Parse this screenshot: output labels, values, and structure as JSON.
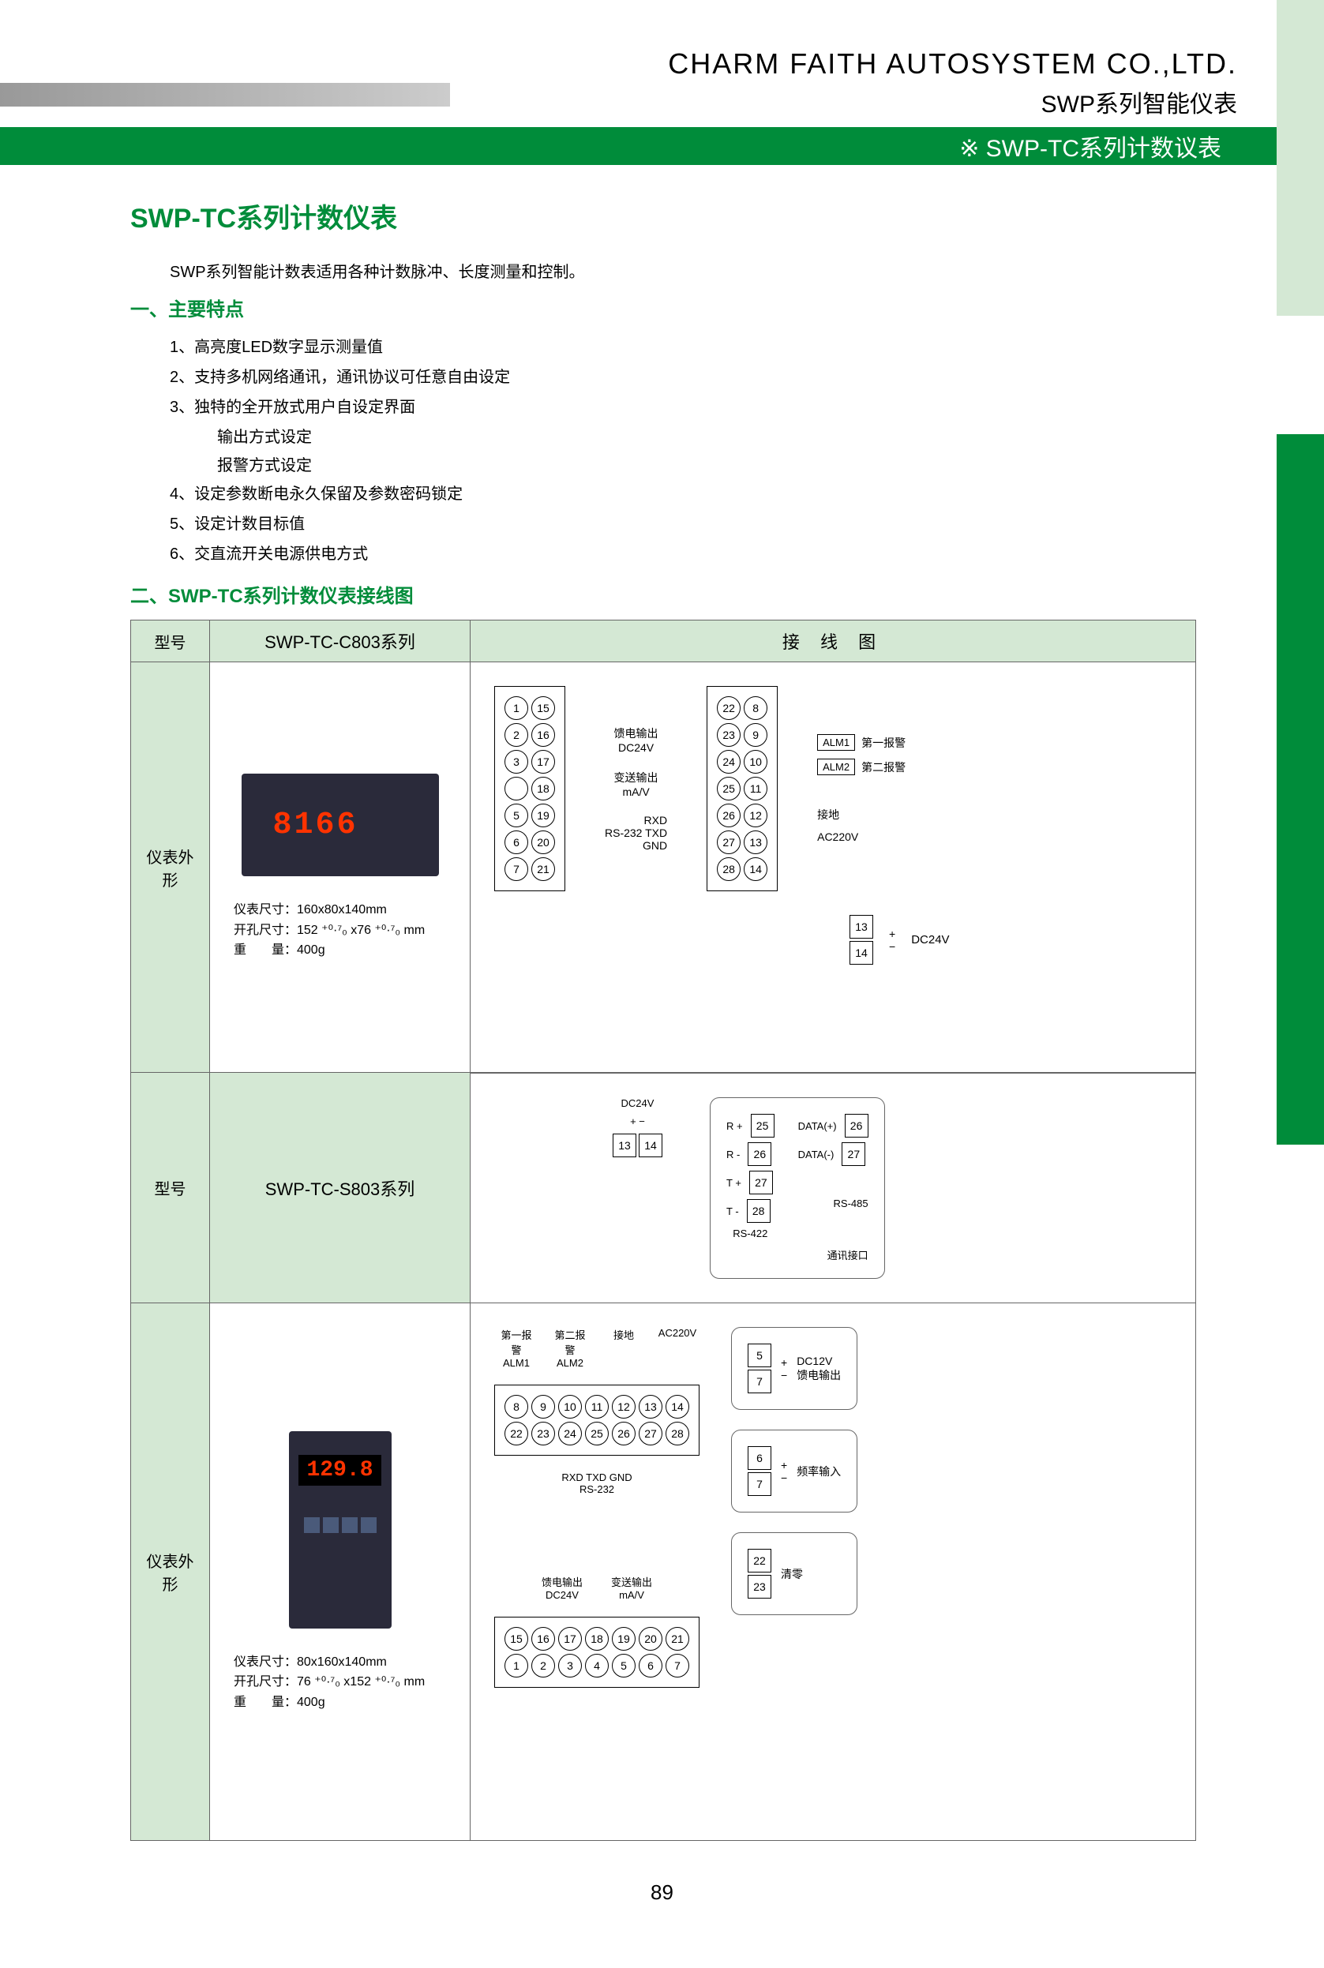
{
  "header": {
    "company": "CHARM FAITH AUTOSYSTEM CO.,LTD.",
    "subtitle": "SWP系列智能仪表",
    "banner": "※ SWP-TC系列计数议表"
  },
  "title": "SWP-TC系列计数仪表",
  "intro": "SWP系列智能计数表适用各种计数脉冲、长度测量和控制。",
  "section1": {
    "heading": "一、主要特点",
    "items": [
      "1、高亮度LED数字显示测量值",
      "2、支持多机网络通讯，通讯协议可任意自由设定",
      "3、独特的全开放式用户自设定界面",
      "4、设定参数断电永久保留及参数密码锁定",
      "5、设定计数目标值",
      "6、交直流开关电源供电方式"
    ],
    "sub3": [
      "输出方式设定",
      "报警方式设定"
    ]
  },
  "section2": {
    "heading": "二、SWP-TC系列计数仪表接线图"
  },
  "table": {
    "header": {
      "col1": "型号",
      "col3": "接 线 图"
    },
    "row1": {
      "model": "SWP-TC-C803系列",
      "label": "仪表外形",
      "display": "8166",
      "spec1": "仪表尺寸：160x80x140mm",
      "spec2": "开孔尺寸：152 ⁺⁰·⁷₀ x76 ⁺⁰·⁷₀ mm",
      "spec3": "重　　量：400g"
    },
    "row2": {
      "model": "SWP-TC-S803系列",
      "label": "仪表外形",
      "display": "129.8",
      "spec1": "仪表尺寸：80x160x140mm",
      "spec2": "开孔尺寸：76 ⁺⁰·⁷₀ x152 ⁺⁰·⁷₀ mm",
      "spec3": "重　　量：400g"
    }
  },
  "diagram_c803": {
    "left_pins_col1": [
      "1",
      "2",
      "3",
      "",
      "5",
      "6",
      "7"
    ],
    "left_pins_col2": [
      "15",
      "16",
      "17",
      "18",
      "19",
      "20",
      "21"
    ],
    "right_pins_col1": [
      "22",
      "23",
      "24",
      "25",
      "26",
      "27",
      "28"
    ],
    "right_pins_col2": [
      "8",
      "9",
      "10",
      "11",
      "12",
      "13",
      "14"
    ],
    "mid_labels": [
      {
        "t1": "馈电输出",
        "t2": "DC24V"
      },
      {
        "t1": "变送输出",
        "t2": "mA/V"
      },
      {
        "t1": "RXD",
        "t2": ""
      },
      {
        "t1": "RS-232  TXD",
        "t2": ""
      },
      {
        "t1": "GND",
        "t2": ""
      }
    ],
    "right_labels": [
      {
        "box": "ALM1",
        "text": "第一报警"
      },
      {
        "box": "ALM2",
        "text": "第二报警"
      },
      {
        "text": "接地"
      },
      {
        "text": "AC220V"
      }
    ],
    "aux": {
      "pins": [
        "13",
        "14"
      ],
      "label": "DC24V"
    }
  },
  "diagram_s803": {
    "top_aux": {
      "label": "DC24V",
      "pins": [
        "13",
        "14"
      ]
    },
    "top_labels": [
      "第一报警\nALM1",
      "第二报警\nALM2",
      "接地",
      "AC220V"
    ],
    "block1_row1": [
      "8",
      "9",
      "10",
      "11",
      "12",
      "13",
      "14"
    ],
    "block1_row2": [
      "22",
      "23",
      "24",
      "25",
      "26",
      "27",
      "28"
    ],
    "rs232": {
      "l1": "RXD TXD GND",
      "l2": "RS-232"
    },
    "bottom_labels": [
      "馈电输出\nDC24V",
      "变送输出\nmA/V"
    ],
    "block2_row1": [
      "15",
      "16",
      "17",
      "18",
      "19",
      "20",
      "21"
    ],
    "block2_row2": [
      "1",
      "2",
      "3",
      "4",
      "5",
      "6",
      "7"
    ],
    "comm": {
      "left_pins": [
        "25",
        "26",
        "27",
        "28"
      ],
      "left_labels": [
        "R +",
        "R -",
        "T +",
        "T -"
      ],
      "rs422": "RS-422",
      "right_pins": [
        "26",
        "27"
      ],
      "right_labels": [
        "DATA(+)",
        "DATA(-)"
      ],
      "rs485": "RS-485",
      "title": "通讯接口"
    },
    "aux1": {
      "pins": [
        "5",
        "7"
      ],
      "l1": "DC12V",
      "l2": "馈电输出"
    },
    "aux2": {
      "pins": [
        "6",
        "7"
      ],
      "l1": "频率输入"
    },
    "aux3": {
      "pins": [
        "22",
        "23"
      ],
      "l1": "清零"
    }
  },
  "page_number": "89"
}
